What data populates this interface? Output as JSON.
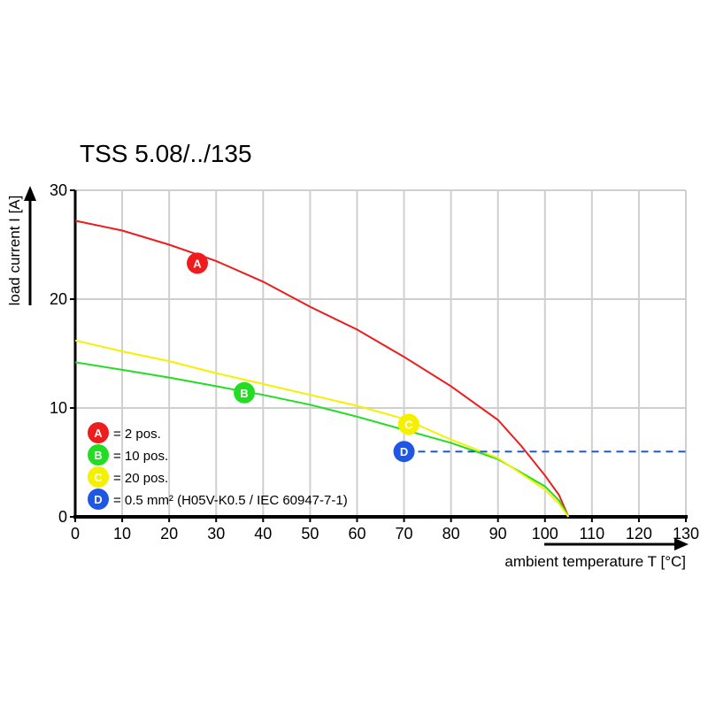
{
  "chart_data": {
    "type": "line",
    "title": "TSS 5.08/../135",
    "xlabel": "ambient temperature T [°C]",
    "ylabel": "load current I [A]",
    "xlim": [
      0,
      130
    ],
    "ylim": [
      0,
      30
    ],
    "xticks": [
      0,
      10,
      20,
      30,
      40,
      50,
      60,
      70,
      80,
      90,
      100,
      110,
      120,
      130
    ],
    "yticks": [
      0,
      10,
      20,
      30
    ],
    "grid": true,
    "legend_position": "bottom-left",
    "series": [
      {
        "marker": "A",
        "color": "#ee1c1c",
        "marker_at": [
          26,
          23.3
        ],
        "x": [
          0,
          10,
          20,
          30,
          40,
          50,
          60,
          70,
          80,
          90,
          95,
          100,
          103,
          105
        ],
        "y": [
          27.2,
          26.3,
          25.0,
          23.5,
          21.6,
          19.3,
          17.2,
          14.7,
          12.0,
          8.9,
          6.5,
          3.8,
          2.0,
          0
        ]
      },
      {
        "marker": "B",
        "color": "#22dd22",
        "marker_at": [
          36,
          11.4
        ],
        "x": [
          0,
          10,
          20,
          30,
          40,
          50,
          60,
          70,
          80,
          90,
          100,
          103,
          105
        ],
        "y": [
          14.2,
          13.5,
          12.8,
          12.0,
          11.2,
          10.3,
          9.2,
          8.0,
          6.8,
          5.3,
          2.8,
          1.5,
          0
        ]
      },
      {
        "marker": "C",
        "color": "#f5f000",
        "marker_at": [
          71,
          8.5
        ],
        "x": [
          0,
          10,
          20,
          30,
          40,
          50,
          60,
          70,
          80,
          90,
          100,
          103,
          105
        ],
        "y": [
          16.2,
          15.2,
          14.3,
          13.2,
          12.2,
          11.2,
          10.2,
          9.0,
          7.1,
          5.4,
          2.5,
          1.2,
          0
        ]
      },
      {
        "marker": "D",
        "color": "#1e56e6",
        "marker_at": [
          70,
          6
        ],
        "style": "dashed",
        "x": [
          73,
          130
        ],
        "y": [
          6,
          6
        ]
      }
    ],
    "legend": [
      {
        "marker": "A",
        "text": "= 2 pos."
      },
      {
        "marker": "B",
        "text": "= 10 pos."
      },
      {
        "marker": "C",
        "text": "= 20 pos."
      },
      {
        "marker": "D",
        "text": "= 0.5 mm² (H05V-K0.5 / IEC 60947-7-1)"
      }
    ]
  }
}
